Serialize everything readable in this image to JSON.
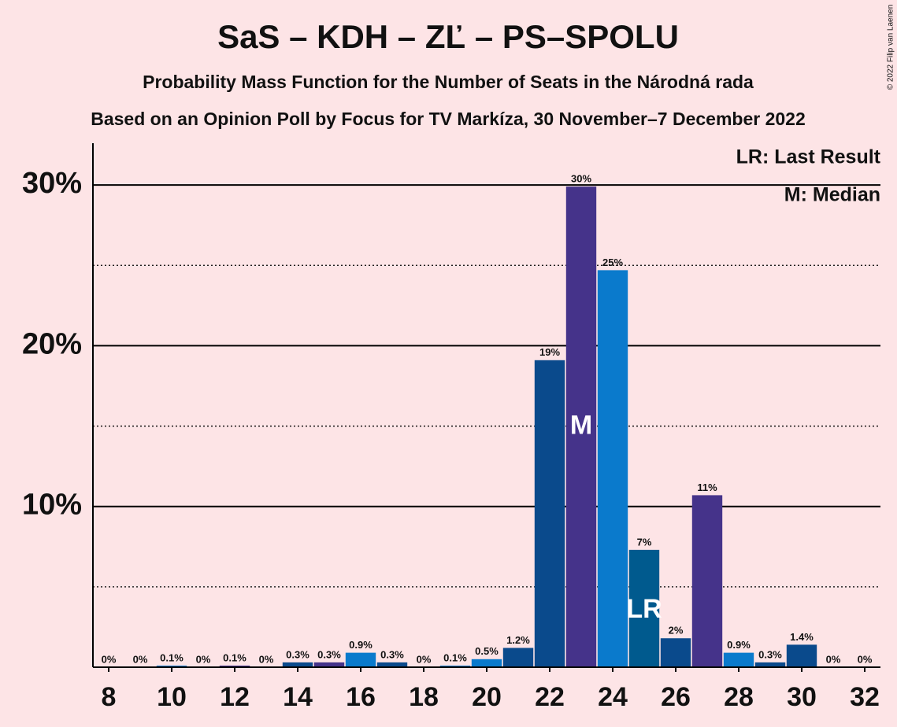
{
  "chart_data": {
    "type": "bar",
    "title": "SaS – KDH – ZĽ – PS–SPOLU",
    "subtitle": "Probability Mass Function for the Number of Seats in the Národná rada",
    "subtitle2": "Based on an Opinion Poll by Focus for TV Markíza, 30 November–7 December 2022",
    "copyright": "© 2022 Filip van Laenen",
    "x": [
      8,
      9,
      10,
      11,
      12,
      13,
      14,
      15,
      16,
      17,
      18,
      19,
      20,
      21,
      22,
      23,
      24,
      25,
      26,
      27,
      28,
      29,
      30,
      31,
      32
    ],
    "values": [
      0,
      0,
      0.1,
      0,
      0.1,
      0,
      0.3,
      0.3,
      0.9,
      0.3,
      0,
      0.1,
      0.5,
      1.2,
      19.1,
      29.9,
      24.7,
      7.3,
      1.8,
      10.7,
      0.9,
      0.3,
      1.4,
      0,
      0
    ],
    "value_labels": [
      "0%",
      "0%",
      "0.1%",
      "0%",
      "0.1%",
      "0%",
      "0.3%",
      "0.3%",
      "0.9%",
      "0.3%",
      "0%",
      "0.1%",
      "0.5%",
      "1.2%",
      "19%",
      "30%",
      "25%",
      "7%",
      "2%",
      "11%",
      "0.9%",
      "0.3%",
      "1.4%",
      "0%",
      "0%"
    ],
    "colors": [
      "#0a4a8c",
      "#45338a",
      "#0a7acc",
      "#0a4a8c",
      "#45338a",
      "#0a7acc",
      "#0a4a8c",
      "#45338a",
      "#0a7acc",
      "#0a4a8c",
      "#45338a",
      "#0a7acc",
      "#0a7acc",
      "#0a4a8c",
      "#0a4a8c",
      "#45338a",
      "#0a7acc",
      "#005a8e",
      "#0a4a8c",
      "#45338a",
      "#0a7acc",
      "#0a4a8c",
      "#0a4a8c",
      "#0a4a8c",
      "#0a4a8c"
    ],
    "xlim": [
      7.5,
      32.5
    ],
    "xticks": [
      8,
      10,
      12,
      14,
      16,
      18,
      20,
      22,
      24,
      26,
      28,
      30,
      32
    ],
    "ylim": [
      0,
      32.6
    ],
    "yticks": [
      {
        "value": 10,
        "label": "10%"
      },
      {
        "value": 20,
        "label": "20%"
      },
      {
        "value": 30,
        "label": "30%"
      }
    ],
    "minor_yticks": [
      5,
      15,
      25
    ],
    "annotations": [
      {
        "x": 23,
        "label": "M"
      },
      {
        "x": 25,
        "label": "LR"
      }
    ],
    "legend": [
      "LR: Last Result",
      "M: Median"
    ]
  }
}
